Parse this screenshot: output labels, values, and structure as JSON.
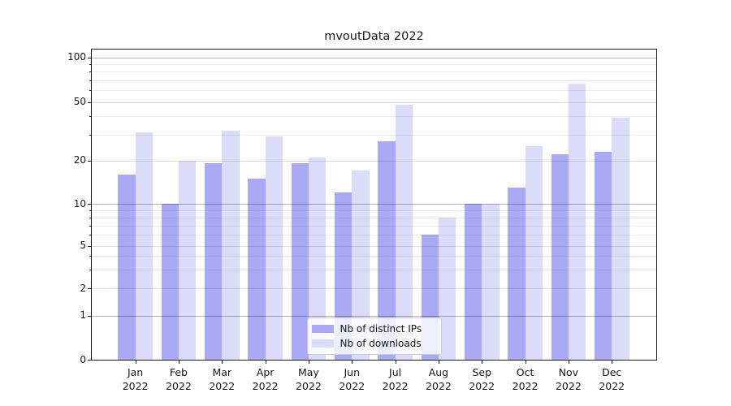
{
  "title": "mvoutData 2022",
  "colors": {
    "ips": "#aaaaf4",
    "downloads": "#dcdcfa",
    "grid_decade": "rgba(0,0,0,0.30)",
    "grid_labeled": "rgba(0,0,0,0.13)",
    "grid_minor": "rgba(0,0,0,0.08)",
    "axis_text": "#141414"
  },
  "legend": {
    "position": "lower center",
    "items": [
      {
        "key": "ips",
        "label": "Nb of distinct IPs"
      },
      {
        "key": "downloads",
        "label": "Nb of downloads"
      }
    ]
  },
  "chart_data": {
    "type": "bar",
    "title": "mvoutData 2022",
    "xlabel": "",
    "ylabel": "",
    "y_scale": "symlog",
    "ylim": [
      0,
      113
    ],
    "grid": true,
    "y_ticks": [
      0,
      1,
      2,
      5,
      10,
      20,
      50,
      100
    ],
    "y_minor_ticks": [
      3,
      4,
      6,
      7,
      8,
      9,
      30,
      40,
      60,
      70,
      80,
      90
    ],
    "categories": [
      {
        "month": "Jan",
        "year": "2022"
      },
      {
        "month": "Feb",
        "year": "2022"
      },
      {
        "month": "Mar",
        "year": "2022"
      },
      {
        "month": "Apr",
        "year": "2022"
      },
      {
        "month": "May",
        "year": "2022"
      },
      {
        "month": "Jun",
        "year": "2022"
      },
      {
        "month": "Jul",
        "year": "2022"
      },
      {
        "month": "Aug",
        "year": "2022"
      },
      {
        "month": "Sep",
        "year": "2022"
      },
      {
        "month": "Oct",
        "year": "2022"
      },
      {
        "month": "Nov",
        "year": "2022"
      },
      {
        "month": "Dec",
        "year": "2022"
      }
    ],
    "series": [
      {
        "key": "ips",
        "name": "Nb of distinct IPs",
        "values": [
          16,
          10,
          19,
          15,
          19,
          12,
          27,
          6,
          10,
          13,
          22,
          23
        ]
      },
      {
        "key": "downloads",
        "name": "Nb of downloads",
        "values": [
          31,
          20,
          32,
          29,
          21,
          17,
          48,
          8,
          10,
          25,
          66,
          39
        ]
      }
    ]
  }
}
